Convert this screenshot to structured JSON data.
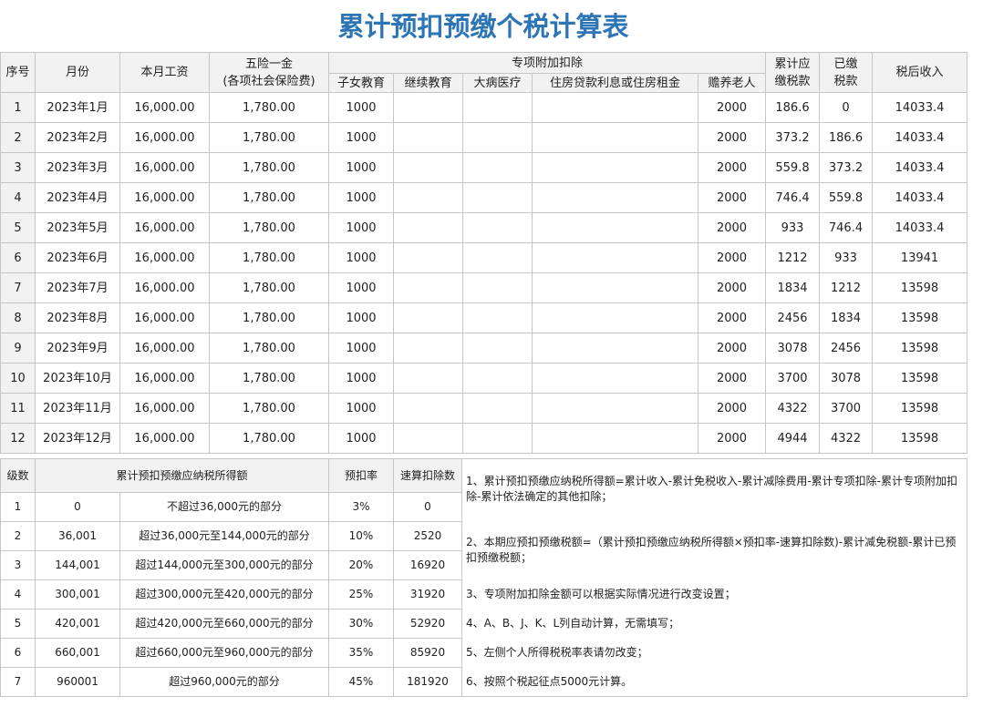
{
  "title": "累计预扣预缴个税计算表",
  "main_table": {
    "headers": {
      "seq": "序号",
      "month": "月份",
      "salary": "本月工资",
      "insurance": [
        "五险一金",
        "(各项社会保险费)"
      ],
      "special": "专项附加扣除",
      "special_items": [
        "子女教育",
        "继续教育",
        "大病医疗",
        "住房贷款利息或住房租金",
        "赡养老人"
      ],
      "cum_tax": [
        "累计应",
        "缴税款"
      ],
      "paid": [
        "已缴",
        "税款"
      ],
      "after_tax": "税后收入"
    },
    "rows": [
      [
        "1",
        "2023年1月",
        "16,000.00",
        "1,780.00",
        "1000",
        null,
        null,
        null,
        "2000",
        "186.6",
        "0",
        "14033.4"
      ],
      [
        "2",
        "2023年2月",
        "16,000.00",
        "1,780.00",
        "1000",
        null,
        null,
        null,
        "2000",
        "373.2",
        "186.6",
        "14033.4"
      ],
      [
        "3",
        "2023年3月",
        "16,000.00",
        "1,780.00",
        "1000",
        null,
        null,
        null,
        "2000",
        "559.8",
        "373.2",
        "14033.4"
      ],
      [
        "4",
        "2023年4月",
        "16,000.00",
        "1,780.00",
        "1000",
        null,
        null,
        null,
        "2000",
        "746.4",
        "559.8",
        "14033.4"
      ],
      [
        "5",
        "2023年5月",
        "16,000.00",
        "1,780.00",
        "1000",
        null,
        null,
        null,
        "2000",
        "933",
        "746.4",
        "14033.4"
      ],
      [
        "6",
        "2023年6月",
        "16,000.00",
        "1,780.00",
        "1000",
        null,
        null,
        null,
        "2000",
        "1212",
        "933",
        "13941"
      ],
      [
        "7",
        "2023年7月",
        "16,000.00",
        "1,780.00",
        "1000",
        null,
        null,
        null,
        "2000",
        "1834",
        "1212",
        "13598"
      ],
      [
        "8",
        "2023年8月",
        "16,000.00",
        "1,780.00",
        "1000",
        null,
        null,
        null,
        "2000",
        "2456",
        "1834",
        "13598"
      ],
      [
        "9",
        "2023年9月",
        "16,000.00",
        "1,780.00",
        "1000",
        null,
        null,
        null,
        "2000",
        "3078",
        "2456",
        "13598"
      ],
      [
        "10",
        "2023年10月",
        "16,000.00",
        "1,780.00",
        "1000",
        null,
        null,
        null,
        "2000",
        "3700",
        "3078",
        "13598"
      ],
      [
        "11",
        "2023年11月",
        "16,000.00",
        "1,780.00",
        "1000",
        null,
        null,
        null,
        "2000",
        "4322",
        "3700",
        "13598"
      ],
      [
        "12",
        "2023年12月",
        "16,000.00",
        "1,780.00",
        "1000",
        null,
        null,
        null,
        "2000",
        "4944",
        "4322",
        "13598"
      ]
    ]
  },
  "tax_table": {
    "headers": [
      "级数",
      "累计预扣预缴应纳税所得额",
      "预扣率",
      "速算扣除数"
    ],
    "rows": [
      [
        "1",
        "0",
        "不超过36,000元的部分",
        "3%",
        "0"
      ],
      [
        "2",
        "36,001",
        "超过36,000元至144,000元的部分",
        "10%",
        "2520"
      ],
      [
        "3",
        "144,001",
        "超过144,000元至300,000元的部分",
        "20%",
        "16920"
      ],
      [
        "4",
        "300,001",
        "超过300,000元至420,000元的部分",
        "25%",
        "31920"
      ],
      [
        "5",
        "420,001",
        "超过420,000元至660,000元的部分",
        "30%",
        "52920"
      ],
      [
        "6",
        "660,001",
        "超过660,000元至960,000元的部分",
        "35%",
        "85920"
      ],
      [
        "7",
        "960001",
        "超过960,000元的部分",
        "45%",
        "181920"
      ]
    ]
  },
  "notes": [
    "1、累计预扣预缴应纳税所得额=累计收入-累计免税收入-累计减除费用-累计专项扣除-累计专项附加扣除-累计依法确定的其他扣除；",
    "2、本期应预扣预缴税额=（累计预扣预缴应纳税所得额×预扣率-速算扣除数)-累计减免税额-累计已预扣预缴税额；",
    "3、专项附加扣除金额可以根据实际情况进行改变设置；",
    "4、A、B、J、K、L列自动计算，无需填写；",
    "5、左侧个人所得税税率表请勿改变；",
    "6、按照个税起征点5000元计算。"
  ]
}
